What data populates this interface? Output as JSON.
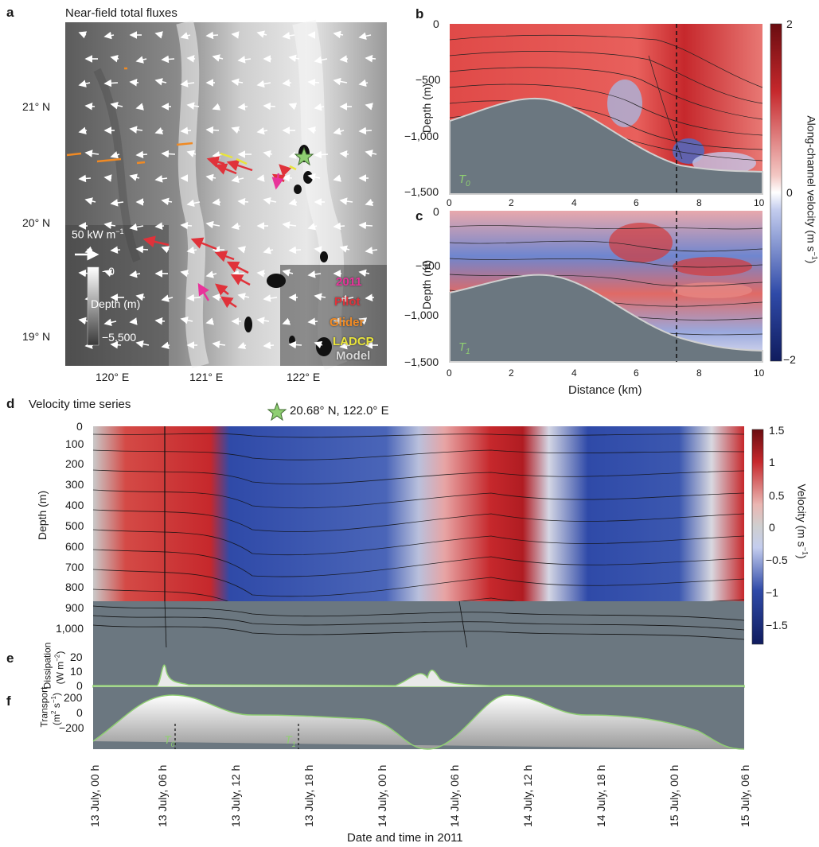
{
  "panel_a": {
    "label": "a",
    "title": "Near-field total fluxes",
    "lat_labels": [
      "21° N",
      "20° N",
      "19° N"
    ],
    "lon_labels": [
      "120° E",
      "121° E",
      "122° E"
    ],
    "scale_label": "50 kW m",
    "scale_sup": "−1",
    "depth_top": "−0",
    "depth_title": "Depth (m)",
    "depth_bottom": "−5,500",
    "legend": [
      {
        "label": "2011",
        "color": "#e8339a"
      },
      {
        "label": "Pilot",
        "color": "#e0323a"
      },
      {
        "label": "Glider",
        "color": "#f08a24"
      },
      {
        "label": "LADCP",
        "color": "#e9e43a"
      },
      {
        "label": "Model",
        "color": "#d8d8d8"
      }
    ]
  },
  "panel_b": {
    "label": "b",
    "tag": "T",
    "tag_sub": "0"
  },
  "panel_c": {
    "label": "c",
    "tag": "T",
    "tag_sub": "1"
  },
  "bc_axes": {
    "depth_ticks": [
      "0",
      "−500",
      "−1,000",
      "−1,500"
    ],
    "dist_ticks": [
      "0",
      "2",
      "4",
      "6",
      "8",
      "10"
    ],
    "ylabel": "Depth (m)",
    "xlabel": "Distance (km)",
    "cbar_ticks": [
      "2",
      "0",
      "−2"
    ],
    "cbar_label": "Along-channel velocity (m s",
    "cbar_sup": "−1",
    "cbar_end": ")"
  },
  "panel_d": {
    "label": "d",
    "title": "Velocity time series",
    "location": "20.68° N, 122.0° E",
    "depth_ticks": [
      "0",
      "100",
      "200",
      "300",
      "400",
      "500",
      "600",
      "700",
      "800",
      "900",
      "1,000"
    ],
    "ylabel": "Depth (m)",
    "cbar_ticks": [
      "1.5",
      "1",
      "0.5",
      "0",
      "−0.5",
      "−1",
      "−1.5"
    ],
    "cbar_label": "Velocity (m s",
    "cbar_sup": "−1",
    "cbar_end": ")"
  },
  "panel_e": {
    "label": "e",
    "ylabel_top": "Dissipation",
    "ylabel_units": "(W m",
    "ylabel_sup": "−2",
    "ylabel_end": ")",
    "ticks": [
      "20",
      "10",
      "0"
    ]
  },
  "panel_f": {
    "label": "f",
    "ylabel_top": "Transport",
    "ylabel_units": "(m",
    "ylabel_sup": "2",
    "ylabel_mid": " s",
    "ylabel_sup2": "−1",
    "ylabel_end": ")",
    "ticks": [
      "200",
      "0",
      "−200"
    ],
    "t0": "T",
    "t0_sub": "0",
    "t1": "T",
    "t1_sub": "1"
  },
  "time_axis": {
    "labels": [
      "13 July, 00 h",
      "13 July, 06 h",
      "13 July, 12 h",
      "13 July, 18 h",
      "14 July, 00 h",
      "14 July, 06 h",
      "14 July, 12 h",
      "14 July, 18 h",
      "15 July, 00 h",
      "15 July, 06 h"
    ],
    "xlabel": "Date and time in 2011"
  },
  "colors": {
    "red": "#c6282c",
    "blue": "#2f4aa8",
    "slate": "#6b7780",
    "green": "#8fcf72"
  }
}
